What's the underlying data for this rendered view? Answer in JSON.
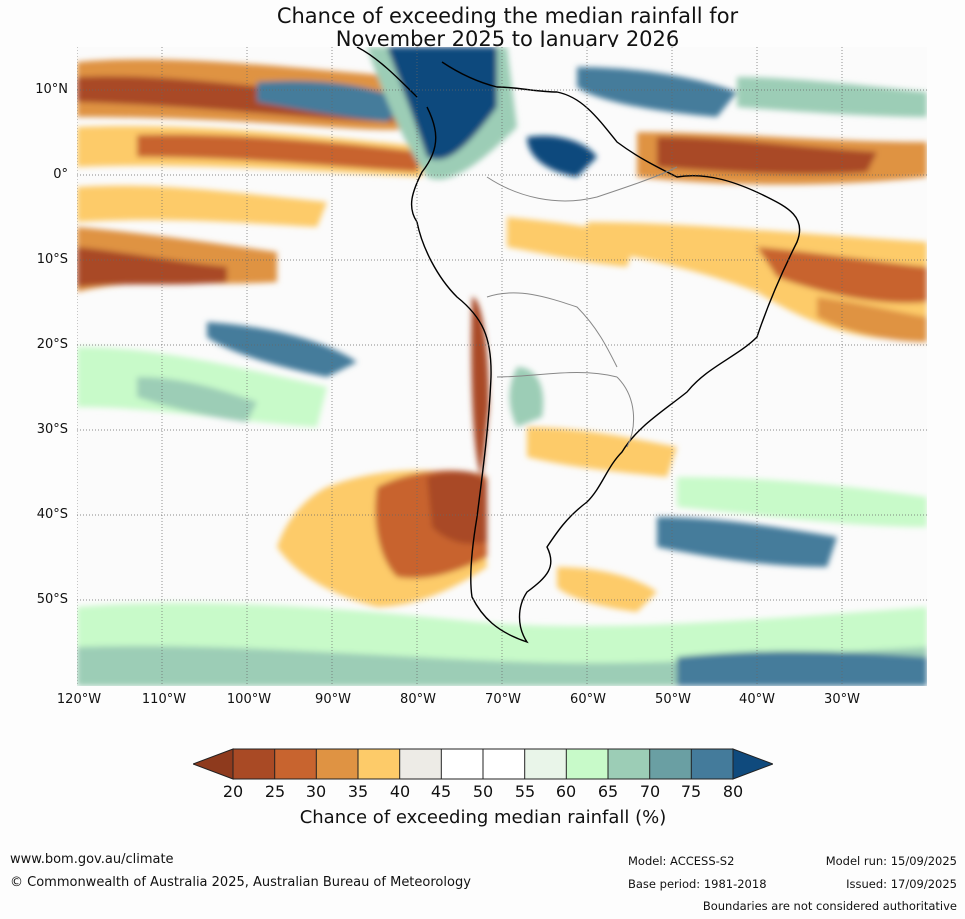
{
  "title": {
    "line1": "Chance of exceeding the median rainfall for",
    "line2": "November 2025 to January 2026"
  },
  "lat_labels": [
    "10°N",
    "0°",
    "10°S",
    "20°S",
    "30°S",
    "40°S",
    "50°S"
  ],
  "lon_labels": [
    "120°W",
    "110°W",
    "100°W",
    "90°W",
    "80°W",
    "70°W",
    "60°W",
    "50°W",
    "40°W",
    "30°W"
  ],
  "colorbar": {
    "label": "Chance of exceeding median rainfall (%)",
    "ticks": [
      "20",
      "25",
      "30",
      "35",
      "40",
      "45",
      "50",
      "55",
      "60",
      "65",
      "70",
      "75",
      "80"
    ],
    "under_color": "#8e3a1d",
    "colors": [
      "#a94a25",
      "#c8642f",
      "#df9343",
      "#fdcb69",
      "#edebe6",
      "#ffffff",
      "#ffffff",
      "#e9f5e9",
      "#c8fac9",
      "#9ccdb6",
      "#6a9fa3",
      "#447b9b"
    ],
    "over_color": "#0f4a7d"
  },
  "footer": {
    "website": "www.bom.gov.au/climate",
    "copyright": "© Commonwealth of Australia 2025, Australian Bureau of Meteorology",
    "model": "Model: ACCESS-S2",
    "base_period": "Base period: 1981-2018",
    "model_run": "Model run: 15/09/2025",
    "issued": "Issued: 17/09/2025",
    "disclaimer": "Boundaries are not considered authoritative"
  }
}
